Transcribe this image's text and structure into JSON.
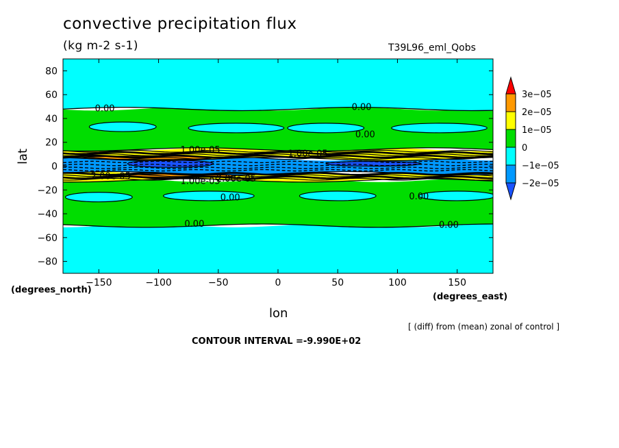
{
  "title": "convective precipitation flux",
  "units": "(kg m-2 s-1)",
  "run_id": "T39L96_eml_Qobs",
  "xlabel": "lon",
  "ylabel": "lat",
  "x_units_note": "(degrees_east)",
  "y_units_note": "(degrees_north)",
  "diff_note": "[ (diff) from (mean) zonal of control ]",
  "contour_interval": "CONTOUR INTERVAL =-9.990E+02",
  "chart_data": {
    "type": "heatmap",
    "title": "convective precipitation flux",
    "xlabel": "lon",
    "ylabel": "lat",
    "xlim": [
      -180,
      180
    ],
    "ylim": [
      -90,
      90
    ],
    "x_ticks": [
      -150,
      -100,
      -50,
      0,
      50,
      100,
      150
    ],
    "x_tick_labels": [
      "−150",
      "−100",
      "−50",
      "0",
      "50",
      "100",
      "150"
    ],
    "y_ticks": [
      80,
      60,
      40,
      20,
      0,
      -20,
      -40,
      -60,
      -80
    ],
    "y_tick_labels": [
      "80",
      "60",
      "40",
      "20",
      "0",
      "−20",
      "−40",
      "−60",
      "−80"
    ],
    "colorbar": {
      "levels": [
        -2e-05,
        -1e-05,
        0,
        1e-05,
        2e-05,
        3e-05
      ],
      "labels": [
        "−2e−05",
        "−1e−05",
        "0",
        "1e−05",
        "2e−05",
        "3e−05"
      ],
      "colors": [
        "#ff0000",
        "#ff9900",
        "#ffff00",
        "#00dd00",
        "#00ffff",
        "#0099ff",
        "#1a53ff"
      ]
    },
    "bands": [
      {
        "lat_from": -90,
        "lat_to": -50,
        "color": "#00ffff"
      },
      {
        "lat_from": -50,
        "lat_to": -12,
        "color": "#00dd00"
      },
      {
        "lat_from": -12,
        "lat_to": -6,
        "color": "#ffff00"
      },
      {
        "lat_from": -6,
        "lat_to": 6,
        "color": "#0099ff"
      },
      {
        "lat_from": 6,
        "lat_to": 14,
        "color": "#ffff00"
      },
      {
        "lat_from": 14,
        "lat_to": 48,
        "color": "#00dd00"
      },
      {
        "lat_from": 48,
        "lat_to": 90,
        "color": "#00ffff"
      }
    ],
    "blobs": [
      {
        "lon": -130,
        "lat": 33,
        "dlon": 28,
        "dlat": 4,
        "color": "#00ffff"
      },
      {
        "lon": -35,
        "lat": 32,
        "dlon": 40,
        "dlat": 4,
        "color": "#00ffff"
      },
      {
        "lon": 40,
        "lat": 32,
        "dlon": 32,
        "dlat": 4,
        "color": "#00ffff"
      },
      {
        "lon": 135,
        "lat": 32,
        "dlon": 40,
        "dlat": 4,
        "color": "#00ffff"
      },
      {
        "lon": -150,
        "lat": -26,
        "dlon": 28,
        "dlat": 4,
        "color": "#00ffff"
      },
      {
        "lon": -58,
        "lat": -25,
        "dlon": 38,
        "dlat": 4,
        "color": "#00ffff"
      },
      {
        "lon": 50,
        "lat": -25,
        "dlon": 32,
        "dlat": 4,
        "color": "#00ffff"
      },
      {
        "lon": 150,
        "lat": -25,
        "dlon": 32,
        "dlat": 4,
        "color": "#00ffff"
      },
      {
        "lon": -90,
        "lat": 2,
        "dlon": 36,
        "dlat": 3,
        "color": "#1a53ff"
      },
      {
        "lon": 80,
        "lat": 2,
        "dlon": 40,
        "dlat": 2,
        "color": "#1a53ff"
      },
      {
        "lon": -110,
        "lat": 7,
        "dlon": 55,
        "dlat": 1.5,
        "color": "#ff9900"
      },
      {
        "lon": -80,
        "lat": -8,
        "dlon": 45,
        "dlat": 1.5,
        "color": "#ff9900"
      }
    ],
    "contour_labels": [
      {
        "lon": -145,
        "lat": 49,
        "text": "0.00"
      },
      {
        "lon": 70,
        "lat": 50,
        "text": "0.00"
      },
      {
        "lon": 73,
        "lat": 27,
        "text": "0.00"
      },
      {
        "lon": -65,
        "lat": 14,
        "text": "1.00e-05"
      },
      {
        "lon": 25,
        "lat": 11,
        "text": "1.00e-05"
      },
      {
        "lon": -140,
        "lat": -8,
        "text": "2.00e-05"
      },
      {
        "lon": -65,
        "lat": -12,
        "text": "1.00e-05"
      },
      {
        "lon": -35,
        "lat": -10,
        "text": "2.00e-05"
      },
      {
        "lon": -40,
        "lat": -26,
        "text": "0.00"
      },
      {
        "lon": 118,
        "lat": -25,
        "text": "0.00"
      },
      {
        "lon": -70,
        "lat": -48,
        "text": "0.00"
      },
      {
        "lon": 143,
        "lat": -49,
        "text": "0.00"
      }
    ]
  }
}
